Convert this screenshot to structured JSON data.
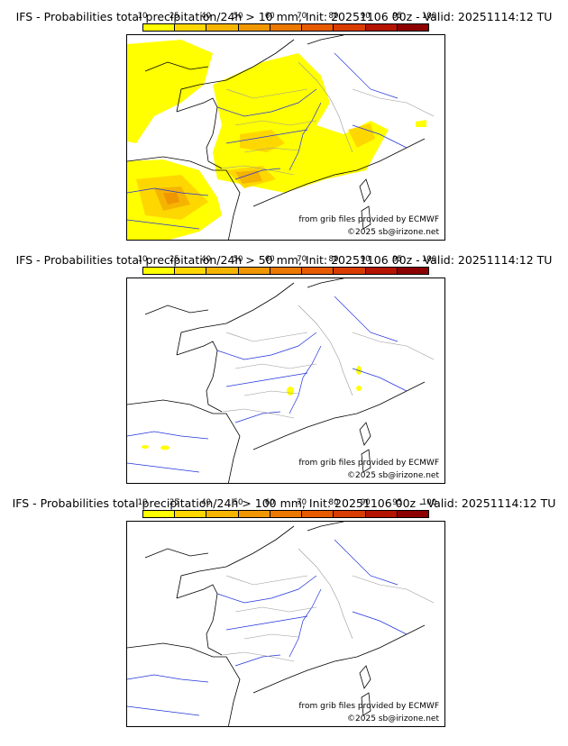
{
  "colorbar": {
    "ticks": [
      "10",
      "25",
      "40",
      "50",
      "60",
      "70",
      "80",
      "90",
      "95",
      "100"
    ],
    "colors": [
      "#ffff00",
      "#ffd700",
      "#f5b400",
      "#f09600",
      "#eb7800",
      "#e85a00",
      "#d83c00",
      "#b41400",
      "#8c0000",
      "#5a0000"
    ]
  },
  "panels": [
    {
      "title": "IFS - Probabilities total precipitation/24h > 10 mm, Init: 20251106 00z - Valid: 20251114:12 TU",
      "credit_source": "from grib files provided by ECMWF",
      "credit_author": "©2025 sb@irizone.net"
    },
    {
      "title": "IFS - Probabilities total precipitation/24h > 50 mm, Init: 20251106 00z - Valid: 20251114:12 TU",
      "credit_source": "from grib files provided by ECMWF",
      "credit_author": "©2025 sb@irizone.net"
    },
    {
      "title": "IFS - Probabilities total precipitation/24h > 100 mm, Init: 20251106 00z - Valid: 20251114:12 TU",
      "credit_source": "from grib files provided by ECMWF",
      "credit_author": "©2025 sb@irizone.net"
    }
  ],
  "map_colors": {
    "coast": "#000000",
    "rivers": "#2233dd",
    "borders": "#999999"
  }
}
